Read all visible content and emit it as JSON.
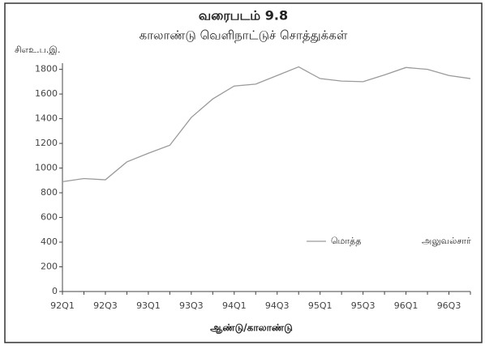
{
  "chart_data": {
    "type": "line",
    "title": "வரைபடம் 9.8",
    "subtitle": "காலாண்டு வெளிநாட்டுச் சொத்துக்கள்",
    "y_label": "சிஎஉ.ப.இ.",
    "x_label": "ஆண்டு/காலாண்டு",
    "categories": [
      "92Q1",
      null,
      "92Q3",
      null,
      "93Q1",
      null,
      "93Q3",
      null,
      "94Q1",
      null,
      "94Q3",
      null,
      "95Q1",
      null,
      "95Q3",
      null,
      "96Q1",
      null,
      "96Q3",
      null
    ],
    "series": [
      {
        "name": "மொத்த",
        "color": "#9a9a9a",
        "values": [
          890,
          915,
          905,
          1050,
          1120,
          1185,
          1410,
          1560,
          1665,
          1680,
          1750,
          1820,
          1725,
          1705,
          1700,
          1755,
          1815,
          1800,
          1750,
          1725
        ]
      },
      {
        "name": "அலுவல்சார்",
        "color": "#555555",
        "values": [
          null,
          null,
          null,
          null,
          null,
          null,
          null,
          null,
          null,
          null,
          null,
          null,
          null,
          null,
          null,
          null,
          null,
          null,
          null,
          null
        ]
      }
    ],
    "ylim": [
      0,
      1850
    ],
    "yticks": [
      0,
      200,
      400,
      600,
      800,
      1000,
      1200,
      1400,
      1600,
      1800
    ],
    "legend": "lower right"
  }
}
